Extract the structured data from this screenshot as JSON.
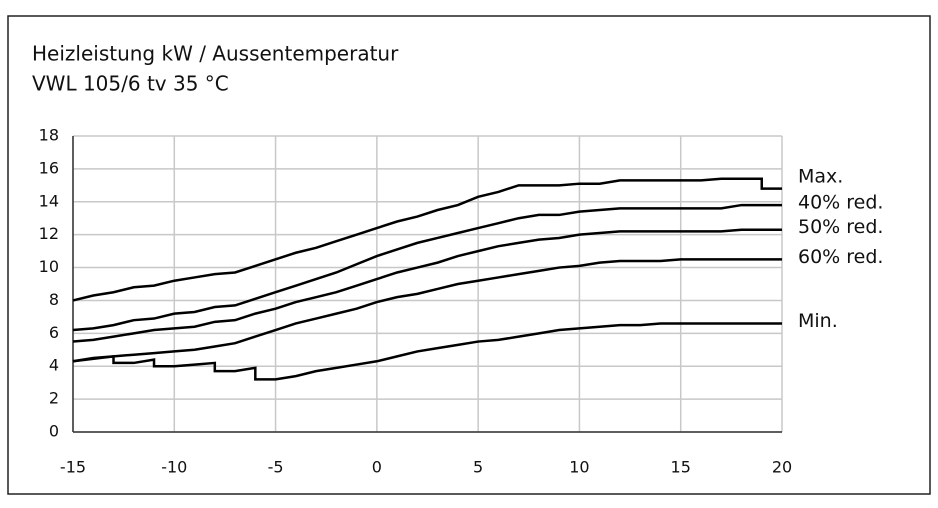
{
  "chart_data": {
    "type": "line",
    "title": "Heizleistung kW / Aussentemperatur",
    "subtitle": "VWL 105/6 tv 35 °C",
    "xlim": [
      -15,
      20
    ],
    "xticks": [
      -15,
      -10,
      -5,
      0,
      5,
      10,
      15,
      20
    ],
    "ylim": [
      0,
      18
    ],
    "yticks": [
      0,
      2,
      4,
      6,
      8,
      10,
      12,
      14,
      16,
      18
    ],
    "grid": true,
    "series": [
      {
        "name": "Max.",
        "color": "#000000",
        "x": [
          -15,
          -14,
          -13,
          -12,
          -11,
          -10,
          -9,
          -8,
          -7,
          -6,
          -5,
          -4,
          -3,
          -2,
          -1,
          0,
          1,
          2,
          3,
          4,
          5,
          6,
          7,
          8,
          9,
          10,
          11,
          12,
          14,
          16,
          17,
          19,
          19,
          20
        ],
        "values": [
          8.0,
          8.3,
          8.5,
          8.8,
          8.9,
          9.2,
          9.4,
          9.6,
          9.7,
          10.1,
          10.5,
          10.9,
          11.2,
          11.6,
          12.0,
          12.4,
          12.8,
          13.1,
          13.5,
          13.8,
          14.3,
          14.6,
          15.0,
          15.0,
          15.0,
          15.1,
          15.1,
          15.3,
          15.3,
          15.3,
          15.4,
          15.4,
          14.8,
          14.8
        ]
      },
      {
        "name": "40% red.",
        "color": "#000000",
        "x": [
          -15,
          -14,
          -13,
          -12,
          -11,
          -10,
          -9,
          -8,
          -7,
          -6,
          -5,
          -4,
          -3,
          -2,
          -1,
          0,
          1,
          2,
          3,
          4,
          5,
          6,
          7,
          8,
          9,
          10,
          11,
          12,
          17,
          18,
          20
        ],
        "values": [
          6.2,
          6.3,
          6.5,
          6.8,
          6.9,
          7.2,
          7.3,
          7.6,
          7.7,
          8.1,
          8.5,
          8.9,
          9.3,
          9.7,
          10.2,
          10.7,
          11.1,
          11.5,
          11.8,
          12.1,
          12.4,
          12.7,
          13.0,
          13.2,
          13.2,
          13.4,
          13.5,
          13.6,
          13.6,
          13.8,
          13.8
        ]
      },
      {
        "name": "50% red.",
        "color": "#000000",
        "x": [
          -15,
          -14,
          -13,
          -12,
          -11,
          -10,
          -9,
          -8,
          -7,
          -6,
          -5,
          -4,
          -3,
          -2,
          -1,
          0,
          1,
          2,
          3,
          4,
          5,
          6,
          7,
          8,
          9,
          10,
          11,
          12,
          17,
          18,
          20
        ],
        "values": [
          5.5,
          5.6,
          5.8,
          6.0,
          6.2,
          6.3,
          6.4,
          6.7,
          6.8,
          7.2,
          7.5,
          7.9,
          8.2,
          8.5,
          8.9,
          9.3,
          9.7,
          10.0,
          10.3,
          10.7,
          11.0,
          11.3,
          11.5,
          11.7,
          11.8,
          12.0,
          12.1,
          12.2,
          12.2,
          12.3,
          12.3
        ]
      },
      {
        "name": "60% red.",
        "color": "#000000",
        "x": [
          -15,
          -14,
          -13,
          -12,
          -11,
          -10,
          -9,
          -8,
          -7,
          -6,
          -5,
          -4,
          -3,
          -2,
          -1,
          0,
          1,
          2,
          3,
          4,
          5,
          6,
          7,
          8,
          9,
          10,
          11,
          12,
          14,
          15,
          20
        ],
        "values": [
          4.3,
          4.5,
          4.6,
          4.7,
          4.8,
          4.9,
          5.0,
          5.2,
          5.4,
          5.8,
          6.2,
          6.6,
          6.9,
          7.2,
          7.5,
          7.9,
          8.2,
          8.4,
          8.7,
          9.0,
          9.2,
          9.4,
          9.6,
          9.8,
          10.0,
          10.1,
          10.3,
          10.4,
          10.4,
          10.5,
          10.5
        ]
      },
      {
        "name": "Min.",
        "color": "#000000",
        "x": [
          -15,
          -13,
          -13,
          -12,
          -11,
          -11,
          -10,
          -9,
          -8,
          -8,
          -7,
          -6,
          -6,
          -5,
          -4,
          -3,
          -2,
          -1,
          0,
          1,
          2,
          3,
          4,
          5,
          6,
          7,
          8,
          9,
          10,
          11,
          12,
          13,
          14,
          20
        ],
        "values": [
          4.3,
          4.6,
          4.2,
          4.2,
          4.4,
          4.0,
          4.0,
          4.1,
          4.2,
          3.7,
          3.7,
          3.9,
          3.2,
          3.2,
          3.4,
          3.7,
          3.9,
          4.1,
          4.3,
          4.6,
          4.9,
          5.1,
          5.3,
          5.5,
          5.6,
          5.8,
          6.0,
          6.2,
          6.3,
          6.4,
          6.5,
          6.5,
          6.6,
          6.6
        ]
      }
    ]
  }
}
